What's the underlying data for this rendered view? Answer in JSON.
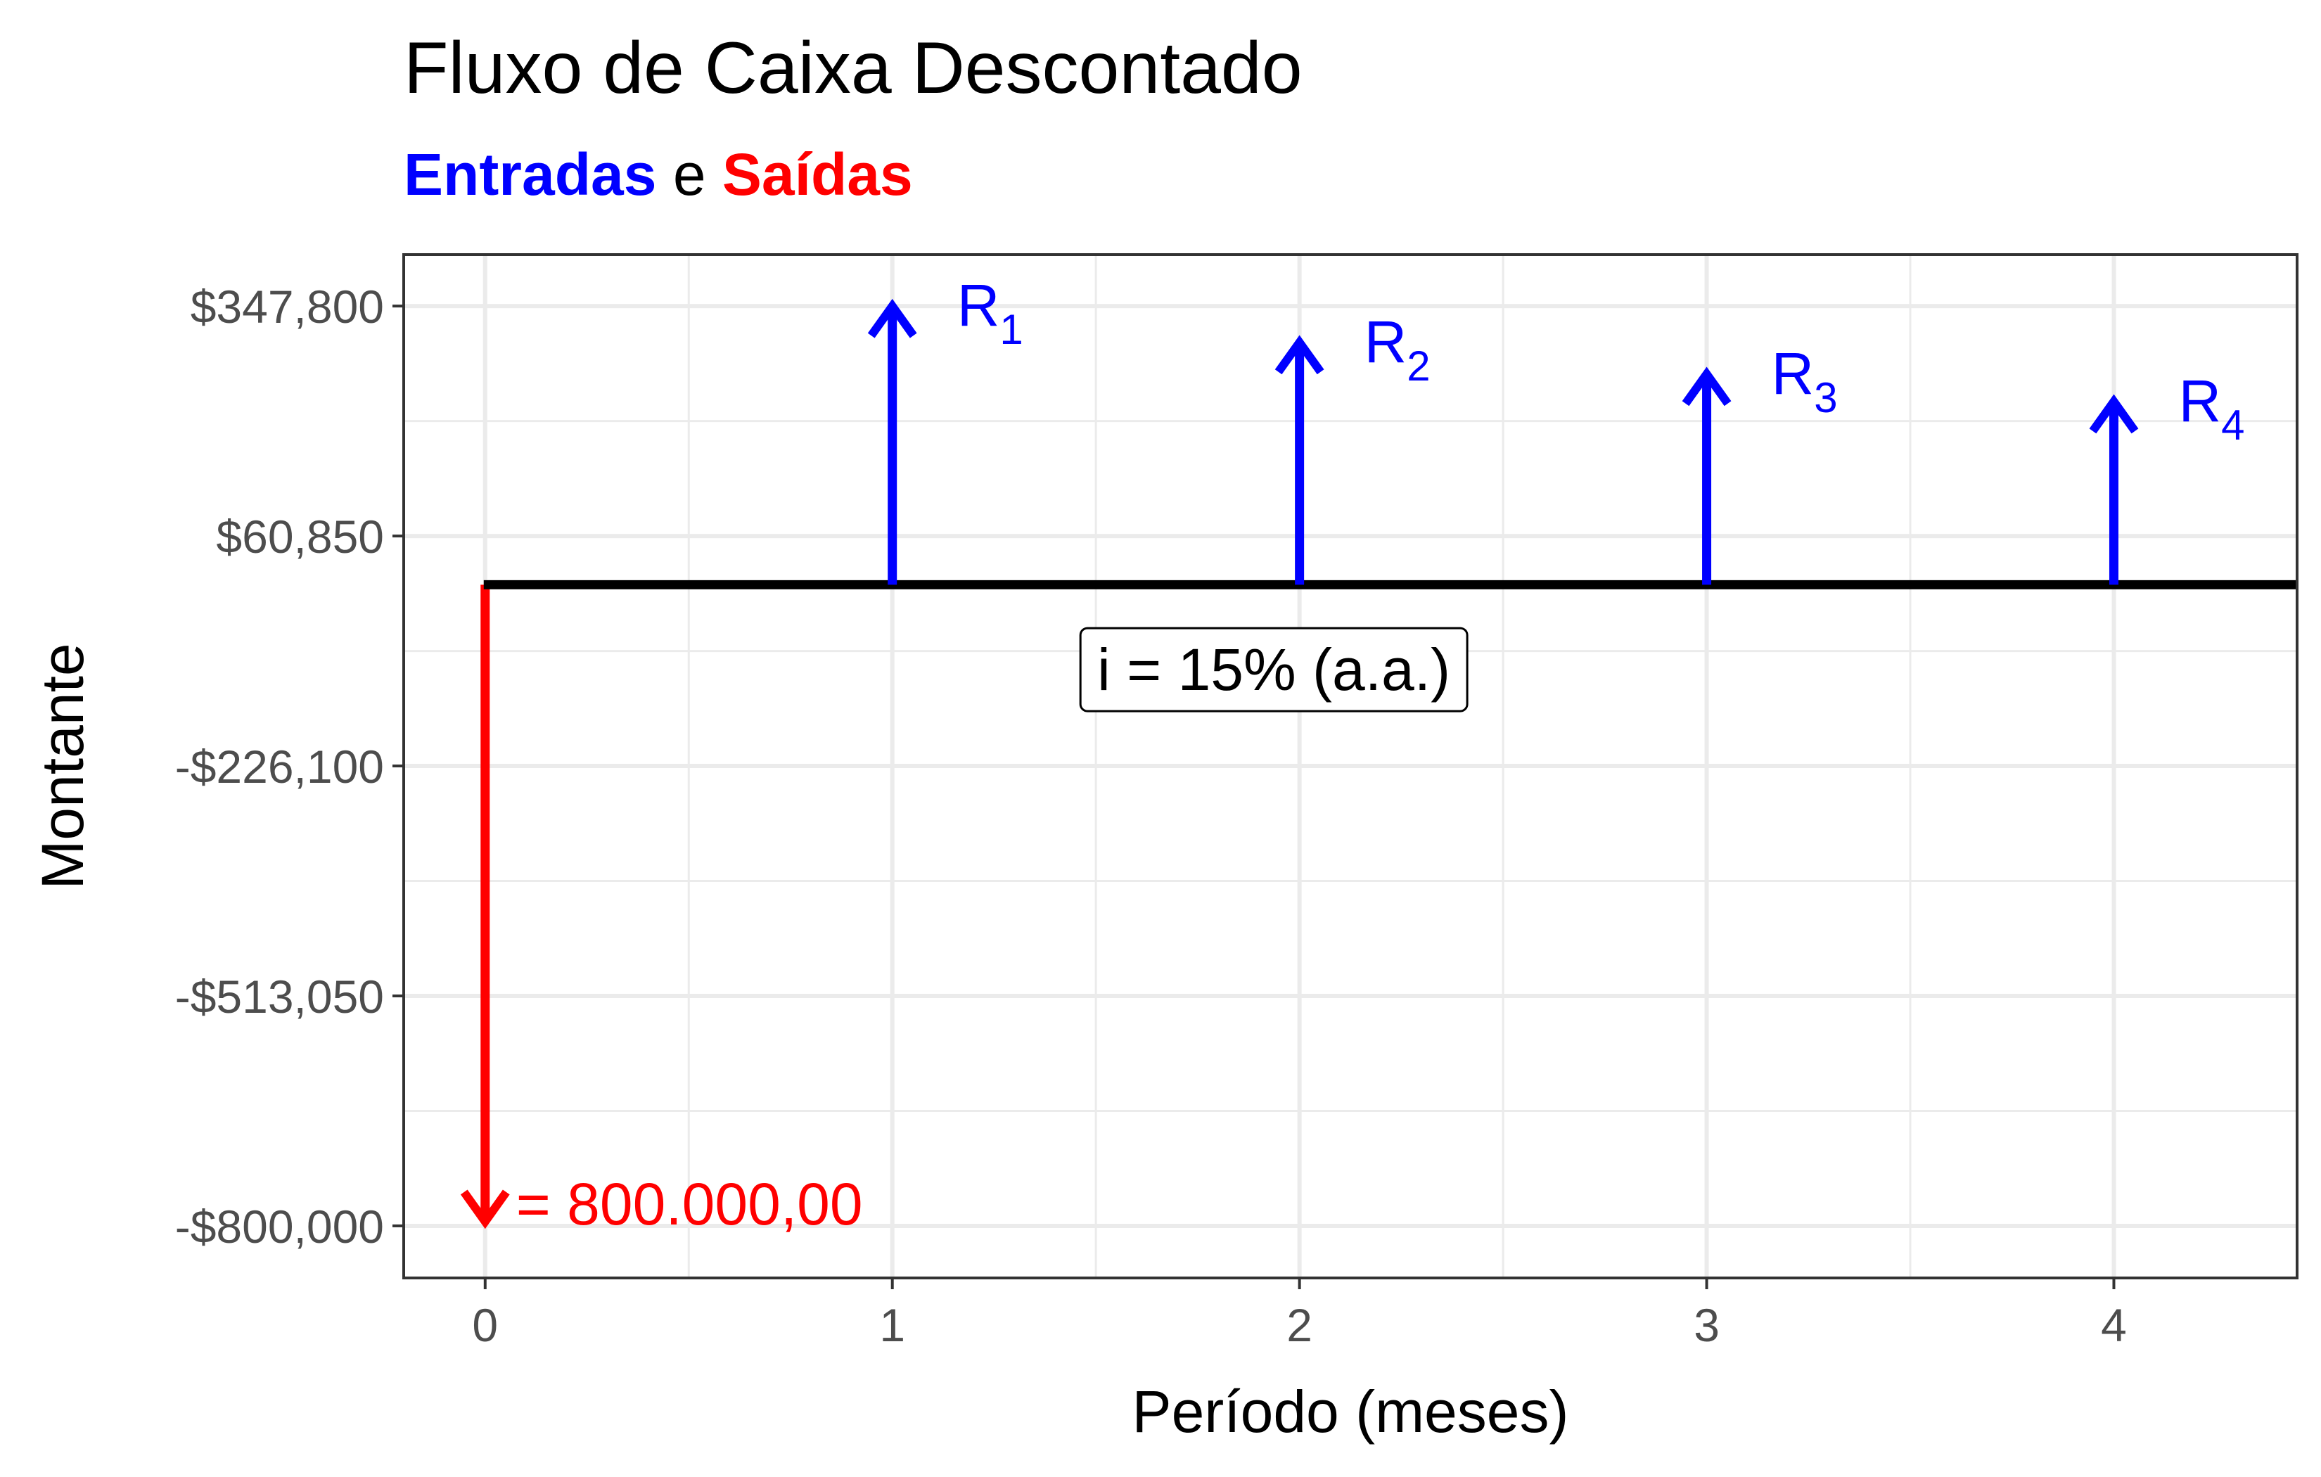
{
  "title": "Fluxo de Caixa Descontado",
  "subtitle": {
    "inflows": "Entradas",
    "joiner": "e",
    "outflows": "Saídas"
  },
  "chart_data": {
    "type": "cash-flow diagram",
    "xlabel": "Período (meses)",
    "ylabel": "Montante",
    "xlim": [
      -0.2,
      4.45
    ],
    "ylim": [
      -865000,
      412000
    ],
    "x_ticks": [
      {
        "value": 0,
        "label": "0"
      },
      {
        "value": 1,
        "label": "1"
      },
      {
        "value": 2,
        "label": "2"
      },
      {
        "value": 3,
        "label": "3"
      },
      {
        "value": 4,
        "label": "4"
      }
    ],
    "y_ticks": [
      {
        "value": 347800,
        "label": "$347,800"
      },
      {
        "value": 60850,
        "label": "$60,850"
      },
      {
        "value": -226100,
        "label": "-$226,100"
      },
      {
        "value": -513050,
        "label": "-$513,050"
      },
      {
        "value": -800000,
        "label": "-$800,000"
      }
    ],
    "grid": true,
    "baseline": {
      "value": 0,
      "x_from": 0,
      "x_to": 4.45
    },
    "outflows": [
      {
        "x": 0,
        "value": -800000,
        "label": "= 800.000,00"
      }
    ],
    "inflows": [
      {
        "x": 1,
        "value": 347800,
        "label": "R",
        "sub": "1"
      },
      {
        "x": 2,
        "value": 302500,
        "label": "R",
        "sub": "2"
      },
      {
        "x": 3,
        "value": 263000,
        "label": "R",
        "sub": "3"
      },
      {
        "x": 4,
        "value": 228700,
        "label": "R",
        "sub": "4"
      }
    ],
    "rate_annotation": {
      "x": 1.5,
      "y": -105000,
      "text": "i = 15% (a.a.)"
    },
    "colors": {
      "inflow": "#0000ff",
      "outflow": "#ff0000",
      "baseline": "#000000",
      "grid": "#ebebeb",
      "panel_border": "#333333"
    }
  }
}
